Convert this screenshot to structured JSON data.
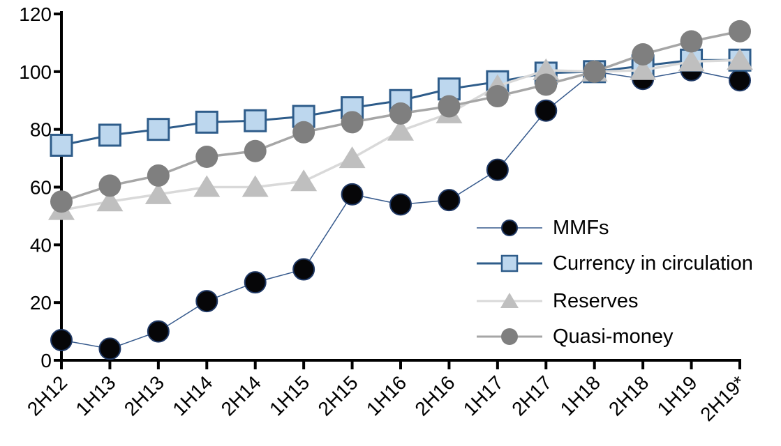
{
  "chart_data": {
    "type": "line",
    "categories": [
      "2H12",
      "1H13",
      "2H13",
      "1H14",
      "2H14",
      "1H15",
      "2H15",
      "1H16",
      "2H16",
      "1H17",
      "2H17",
      "1H18",
      "2H18",
      "1H19",
      "2H19*"
    ],
    "series": [
      {
        "name": "MMFs",
        "marker": "circle-dark",
        "color": "#060608",
        "marker_stroke": "#1F3864",
        "line_color": "#35598C",
        "values": [
          7,
          4,
          10,
          20.5,
          27,
          31.5,
          57.5,
          54,
          55.5,
          66,
          86.5,
          100,
          97.5,
          100.5,
          97
        ]
      },
      {
        "name": "Currency in circulation",
        "marker": "square",
        "color": "#BDD7EE",
        "marker_stroke": "#2E5C8A",
        "line_color": "#2E5C8A",
        "values": [
          74.5,
          78,
          80,
          82.5,
          83,
          84.5,
          87.5,
          90,
          94,
          96.5,
          99.5,
          100,
          102,
          104,
          104
        ]
      },
      {
        "name": "Reserves",
        "marker": "triangle",
        "color": "#BFBFBF",
        "marker_stroke": "none",
        "line_color": "#D9D9D9",
        "values": [
          52,
          55,
          57.5,
          60,
          60,
          62,
          70,
          79.5,
          85.5,
          95,
          100.5,
          100,
          100.5,
          103.5,
          104
        ]
      },
      {
        "name": "Quasi-money",
        "marker": "circle",
        "color": "#7F7F7F",
        "marker_stroke": "none",
        "line_color": "#A6A6A6",
        "values": [
          55,
          60.5,
          64,
          70.5,
          72.5,
          79,
          82.5,
          85.5,
          88,
          91.5,
          95.5,
          100,
          106,
          110.5,
          114
        ]
      }
    ],
    "ylim": [
      0,
      120
    ],
    "y_ticks": [
      0,
      20,
      40,
      60,
      80,
      100,
      120
    ],
    "grid": false,
    "legend_position": "center-right",
    "axis_color": "#000000"
  }
}
